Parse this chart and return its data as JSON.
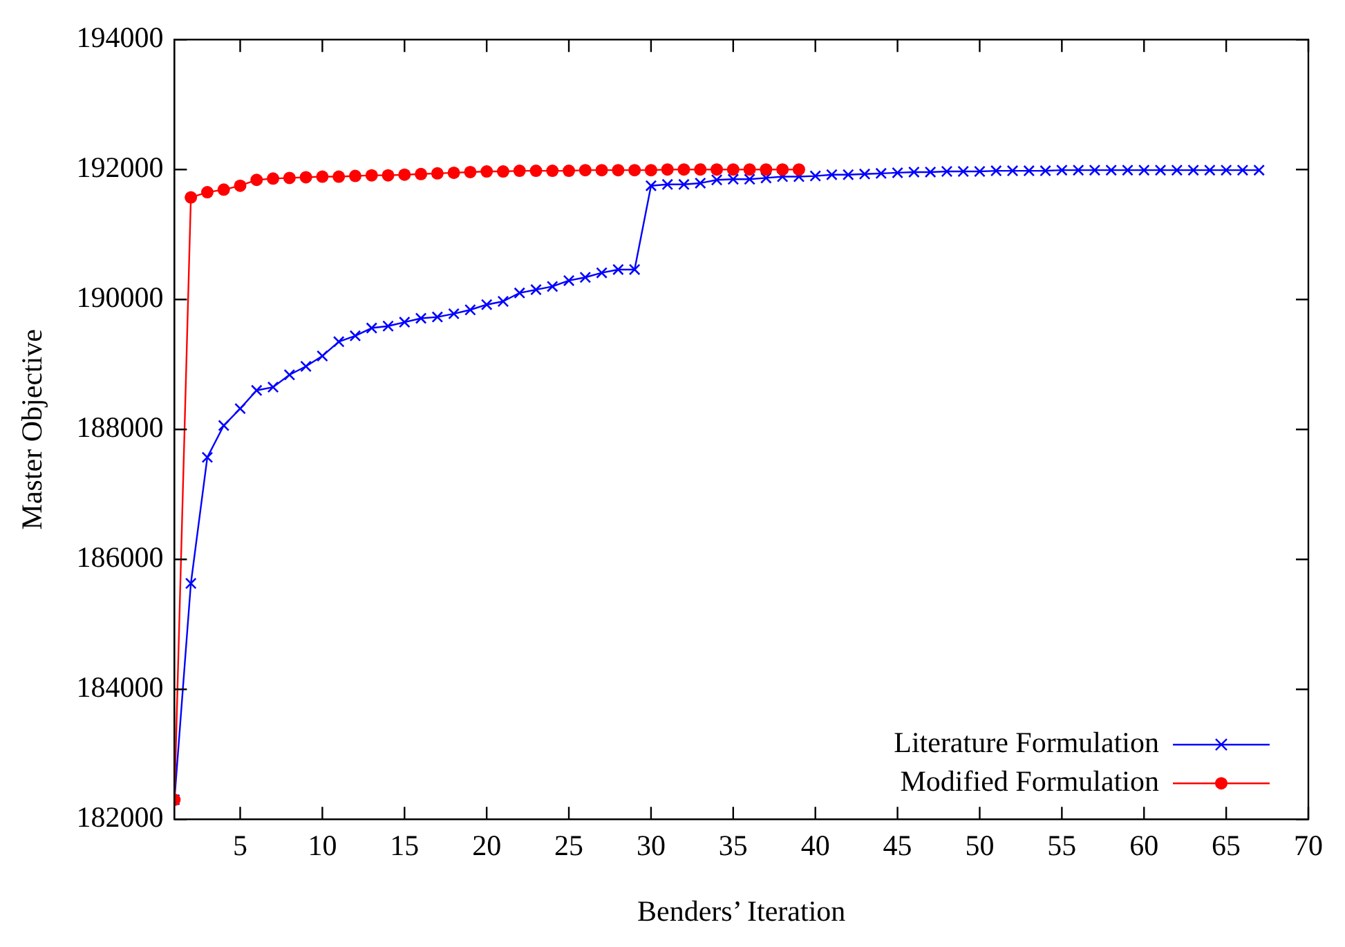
{
  "chart_data": {
    "type": "line",
    "xlabel": "Benders’ Iteration",
    "ylabel": "Master Objective",
    "xlim": [
      1,
      70
    ],
    "xticks": [
      5,
      10,
      15,
      20,
      25,
      30,
      35,
      40,
      45,
      50,
      55,
      60,
      65,
      70
    ],
    "ylim": [
      182000,
      194000
    ],
    "yticks": [
      182000,
      184000,
      186000,
      188000,
      190000,
      192000,
      194000
    ],
    "grid": false,
    "legend": "bottom right",
    "line_style": "solid",
    "series": [
      {
        "name": "Literature Formulation",
        "color": "#0000ff",
        "marker": "cross",
        "x": [
          1,
          2,
          3,
          4,
          5,
          6,
          7,
          8,
          9,
          10,
          11,
          12,
          13,
          14,
          15,
          16,
          17,
          18,
          19,
          20,
          21,
          22,
          23,
          24,
          25,
          26,
          27,
          28,
          29,
          30,
          31,
          32,
          33,
          34,
          35,
          36,
          37,
          38,
          39,
          40,
          41,
          42,
          43,
          44,
          45,
          46,
          47,
          48,
          49,
          50,
          51,
          52,
          53,
          54,
          55,
          56,
          57,
          58,
          59,
          60,
          61,
          62,
          63,
          64,
          65,
          66,
          67
        ],
        "values": [
          182300,
          185630,
          187570,
          188060,
          188320,
          188600,
          188650,
          188840,
          188970,
          189130,
          189350,
          189440,
          189560,
          189590,
          189650,
          189710,
          189730,
          189780,
          189840,
          189920,
          189970,
          190100,
          190150,
          190200,
          190290,
          190340,
          190410,
          190460,
          190460,
          191750,
          191770,
          191770,
          191790,
          191840,
          191850,
          191850,
          191870,
          191890,
          191890,
          191900,
          191920,
          191920,
          191930,
          191940,
          191950,
          191960,
          191960,
          191970,
          191970,
          191970,
          191980,
          191980,
          191980,
          191980,
          191990,
          191990,
          191990,
          191990,
          191990,
          191990,
          191990,
          191990,
          191990,
          191990,
          191990,
          191990,
          191990
        ]
      },
      {
        "name": "Modified Formulation",
        "color": "#ff0000",
        "marker": "circle",
        "x": [
          1,
          2,
          3,
          4,
          5,
          6,
          7,
          8,
          9,
          10,
          11,
          12,
          13,
          14,
          15,
          16,
          17,
          18,
          19,
          20,
          21,
          22,
          23,
          24,
          25,
          26,
          27,
          28,
          29,
          30,
          31,
          32,
          33,
          34,
          35,
          36,
          37,
          38,
          39
        ],
        "values": [
          182300,
          191570,
          191650,
          191690,
          191750,
          191840,
          191860,
          191870,
          191880,
          191890,
          191890,
          191900,
          191910,
          191910,
          191920,
          191930,
          191940,
          191950,
          191960,
          191970,
          191970,
          191980,
          191980,
          191980,
          191980,
          191990,
          191990,
          191990,
          191990,
          191990,
          192000,
          192000,
          192000,
          192000,
          192000,
          192000,
          192000,
          192000,
          192000
        ]
      }
    ]
  }
}
